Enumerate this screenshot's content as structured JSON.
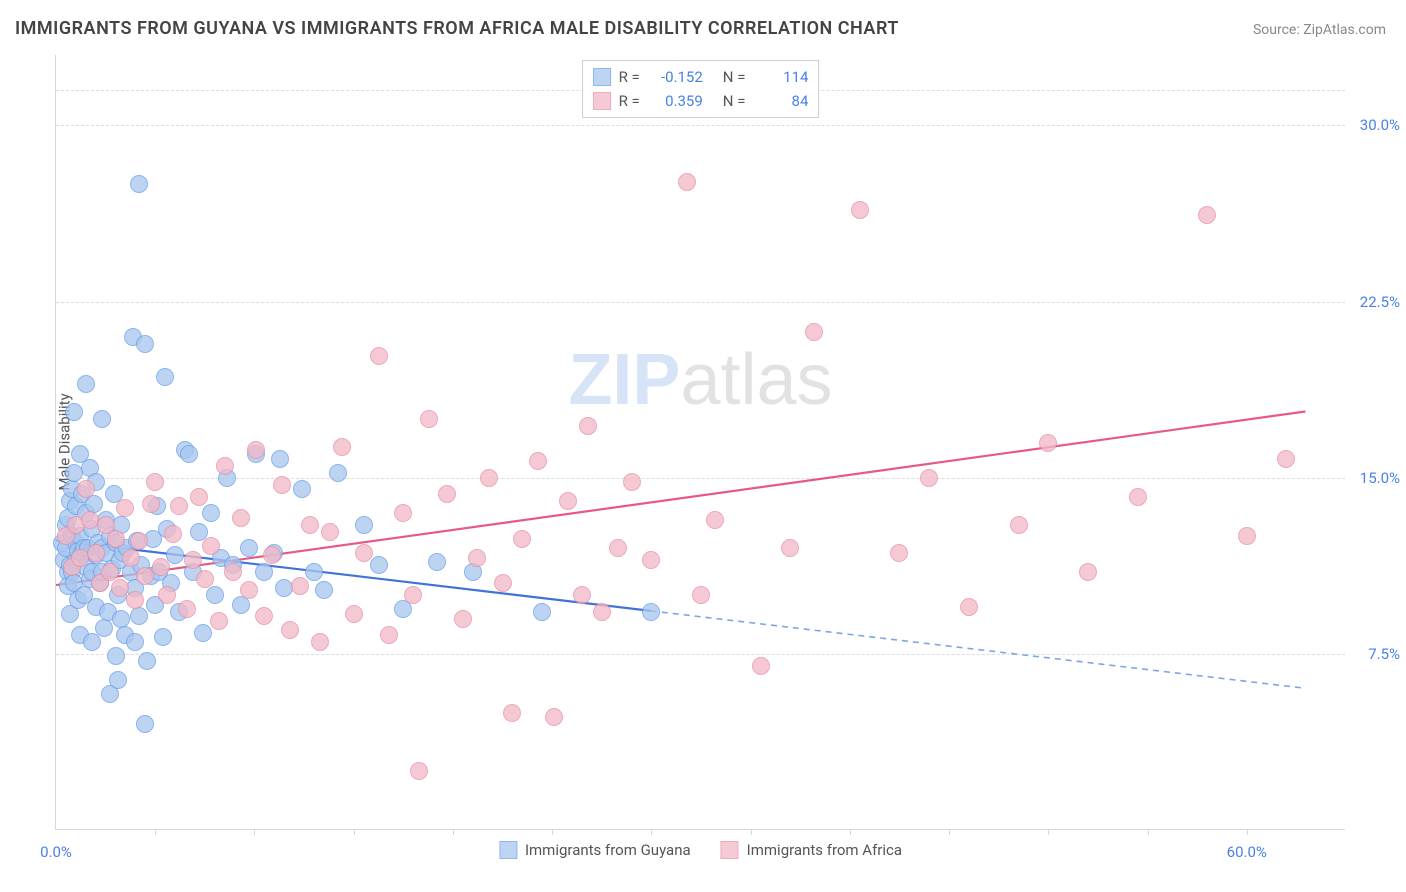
{
  "chart": {
    "type": "scatter",
    "title": "IMMIGRANTS FROM GUYANA VS IMMIGRANTS FROM AFRICA MALE DISABILITY CORRELATION CHART",
    "source": "Source: ZipAtlas.com",
    "y_axis_label": "Male Disability",
    "watermark_zip": "ZIP",
    "watermark_atlas": "atlas",
    "background_color": "#ffffff",
    "grid_color": "#dcdcdc",
    "axis_color": "#d8d8d8",
    "tick_label_color": "#4a80e8",
    "xlim": [
      0,
      65
    ],
    "ylim": [
      0,
      33
    ],
    "x_ticks_at": [
      5,
      10,
      15,
      20,
      25,
      30,
      35,
      40,
      45,
      50,
      55,
      60
    ],
    "x_tick_labels": [
      {
        "x": 0,
        "text": "0.0%"
      },
      {
        "x": 60,
        "text": "60.0%"
      }
    ],
    "y_tick_labels": [
      {
        "y": 7.5,
        "text": "7.5%"
      },
      {
        "y": 15.0,
        "text": "15.0%"
      },
      {
        "y": 22.5,
        "text": "22.5%"
      },
      {
        "y": 30.0,
        "text": "30.0%"
      }
    ],
    "y_gridlines_at": [
      7.5,
      15.0,
      22.5,
      30.0,
      31.5
    ],
    "marker_radius": 9,
    "marker_stroke_width": 1.5,
    "marker_fill_opacity": 0.32,
    "series": [
      {
        "id": "guyana",
        "label": "Immigrants from Guyana",
        "color_stroke": "#6aa0e8",
        "color_fill": "#a8c7ef",
        "R": "-0.152",
        "N": "114",
        "trend": {
          "x1": 0,
          "y1": 12.3,
          "x2": 30,
          "y2": 9.3,
          "color": "#3f73d6",
          "width": 2.2
        },
        "trend_ext": {
          "x1": 30,
          "y1": 9.3,
          "x2": 63,
          "y2": 6.0,
          "color": "#7da5e5",
          "dash": "6,5",
          "width": 1.6
        },
        "points": [
          [
            0.3,
            12.2
          ],
          [
            0.4,
            11.5
          ],
          [
            0.5,
            13.0
          ],
          [
            0.5,
            12.0
          ],
          [
            0.6,
            11.0
          ],
          [
            0.6,
            13.3
          ],
          [
            0.6,
            10.4
          ],
          [
            0.7,
            14.0
          ],
          [
            0.7,
            11.3
          ],
          [
            0.7,
            9.2
          ],
          [
            0.8,
            12.5
          ],
          [
            0.8,
            14.5
          ],
          [
            0.8,
            11.0
          ],
          [
            0.9,
            15.2
          ],
          [
            0.9,
            10.5
          ],
          [
            0.9,
            17.8
          ],
          [
            1.0,
            12.2
          ],
          [
            1.0,
            11.5
          ],
          [
            1.0,
            13.8
          ],
          [
            1.1,
            11.9
          ],
          [
            1.1,
            9.8
          ],
          [
            1.2,
            16.0
          ],
          [
            1.2,
            8.3
          ],
          [
            1.2,
            12.5
          ],
          [
            1.3,
            11.8
          ],
          [
            1.3,
            14.3
          ],
          [
            1.4,
            12.0
          ],
          [
            1.4,
            10.0
          ],
          [
            1.5,
            13.5
          ],
          [
            1.5,
            11.2
          ],
          [
            1.5,
            19.0
          ],
          [
            1.6,
            12.0
          ],
          [
            1.7,
            15.4
          ],
          [
            1.7,
            10.7
          ],
          [
            1.8,
            12.8
          ],
          [
            1.8,
            8.0
          ],
          [
            1.8,
            11.0
          ],
          [
            1.9,
            13.9
          ],
          [
            2.0,
            14.8
          ],
          [
            2.0,
            9.5
          ],
          [
            2.0,
            11.7
          ],
          [
            2.1,
            12.2
          ],
          [
            2.2,
            10.5
          ],
          [
            2.3,
            17.5
          ],
          [
            2.3,
            12.0
          ],
          [
            2.3,
            11.0
          ],
          [
            2.4,
            8.6
          ],
          [
            2.5,
            13.2
          ],
          [
            2.5,
            11.8
          ],
          [
            2.6,
            9.3
          ],
          [
            2.7,
            5.8
          ],
          [
            2.7,
            12.5
          ],
          [
            2.8,
            11.1
          ],
          [
            2.9,
            14.3
          ],
          [
            3.0,
            12.2
          ],
          [
            3.0,
            7.4
          ],
          [
            3.1,
            10.0
          ],
          [
            3.1,
            6.4
          ],
          [
            3.2,
            11.5
          ],
          [
            3.3,
            13.0
          ],
          [
            3.3,
            9.0
          ],
          [
            3.4,
            11.8
          ],
          [
            3.5,
            8.3
          ],
          [
            3.6,
            12.0
          ],
          [
            3.8,
            11.0
          ],
          [
            3.9,
            21.0
          ],
          [
            4.0,
            10.3
          ],
          [
            4.0,
            8.0
          ],
          [
            4.1,
            12.3
          ],
          [
            4.2,
            9.1
          ],
          [
            4.3,
            11.3
          ],
          [
            4.5,
            4.5
          ],
          [
            4.5,
            20.7
          ],
          [
            4.6,
            7.2
          ],
          [
            4.8,
            10.8
          ],
          [
            4.9,
            12.4
          ],
          [
            5.0,
            9.6
          ],
          [
            5.1,
            13.8
          ],
          [
            5.2,
            11.0
          ],
          [
            5.4,
            8.2
          ],
          [
            5.5,
            19.3
          ],
          [
            5.6,
            12.8
          ],
          [
            5.8,
            10.5
          ],
          [
            6.0,
            11.7
          ],
          [
            6.2,
            9.3
          ],
          [
            6.5,
            16.2
          ],
          [
            6.7,
            16.0
          ],
          [
            6.9,
            11.0
          ],
          [
            7.2,
            12.7
          ],
          [
            7.4,
            8.4
          ],
          [
            7.8,
            13.5
          ],
          [
            8.0,
            10.0
          ],
          [
            8.3,
            11.6
          ],
          [
            8.6,
            15.0
          ],
          [
            8.9,
            11.3
          ],
          [
            9.3,
            9.6
          ],
          [
            9.7,
            12.0
          ],
          [
            10.1,
            16.0
          ],
          [
            10.5,
            11.0
          ],
          [
            11.0,
            11.8
          ],
          [
            11.3,
            15.8
          ],
          [
            11.5,
            10.3
          ],
          [
            12.4,
            14.5
          ],
          [
            13.0,
            11.0
          ],
          [
            13.5,
            10.2
          ],
          [
            14.2,
            15.2
          ],
          [
            15.5,
            13.0
          ],
          [
            16.3,
            11.3
          ],
          [
            17.5,
            9.4
          ],
          [
            19.2,
            11.4
          ],
          [
            21.0,
            11.0
          ],
          [
            24.5,
            9.3
          ],
          [
            4.2,
            27.5
          ],
          [
            30.0,
            9.3
          ]
        ]
      },
      {
        "id": "africa",
        "label": "Immigrants from Africa",
        "color_stroke": "#e890a8",
        "color_fill": "#f2b9c8",
        "R": "0.359",
        "N": "84",
        "trend": {
          "x1": 0,
          "y1": 10.4,
          "x2": 63,
          "y2": 17.8,
          "color": "#e55a84",
          "width": 2.2
        },
        "points": [
          [
            0.5,
            12.5
          ],
          [
            0.8,
            11.2
          ],
          [
            1.0,
            13.0
          ],
          [
            1.2,
            11.6
          ],
          [
            1.5,
            14.5
          ],
          [
            1.7,
            13.2
          ],
          [
            2.0,
            11.8
          ],
          [
            2.2,
            10.5
          ],
          [
            2.5,
            13.0
          ],
          [
            2.7,
            11.0
          ],
          [
            3.0,
            12.4
          ],
          [
            3.2,
            10.3
          ],
          [
            3.5,
            13.7
          ],
          [
            3.8,
            11.6
          ],
          [
            4.0,
            9.8
          ],
          [
            4.2,
            12.3
          ],
          [
            4.5,
            10.8
          ],
          [
            4.8,
            13.9
          ],
          [
            5.0,
            14.8
          ],
          [
            5.3,
            11.2
          ],
          [
            5.6,
            10.0
          ],
          [
            5.9,
            12.6
          ],
          [
            6.2,
            13.8
          ],
          [
            6.6,
            9.4
          ],
          [
            6.9,
            11.5
          ],
          [
            7.2,
            14.2
          ],
          [
            7.5,
            10.7
          ],
          [
            7.8,
            12.1
          ],
          [
            8.2,
            8.9
          ],
          [
            8.5,
            15.5
          ],
          [
            8.9,
            11.0
          ],
          [
            9.3,
            13.3
          ],
          [
            9.7,
            10.2
          ],
          [
            10.1,
            16.2
          ],
          [
            10.5,
            9.1
          ],
          [
            10.9,
            11.7
          ],
          [
            11.4,
            14.7
          ],
          [
            11.8,
            8.5
          ],
          [
            12.3,
            10.4
          ],
          [
            12.8,
            13.0
          ],
          [
            13.3,
            8.0
          ],
          [
            13.8,
            12.7
          ],
          [
            14.4,
            16.3
          ],
          [
            15.0,
            9.2
          ],
          [
            15.5,
            11.8
          ],
          [
            16.3,
            20.2
          ],
          [
            16.8,
            8.3
          ],
          [
            17.5,
            13.5
          ],
          [
            18.0,
            10.0
          ],
          [
            18.3,
            2.5
          ],
          [
            18.8,
            17.5
          ],
          [
            19.7,
            14.3
          ],
          [
            20.5,
            9.0
          ],
          [
            21.2,
            11.6
          ],
          [
            21.8,
            15.0
          ],
          [
            22.5,
            10.5
          ],
          [
            23.0,
            5.0
          ],
          [
            23.5,
            12.4
          ],
          [
            24.3,
            15.7
          ],
          [
            25.1,
            4.8
          ],
          [
            25.8,
            14.0
          ],
          [
            26.5,
            10.0
          ],
          [
            26.8,
            17.2
          ],
          [
            27.5,
            9.3
          ],
          [
            28.3,
            12.0
          ],
          [
            29.0,
            14.8
          ],
          [
            30.0,
            11.5
          ],
          [
            31.8,
            27.6
          ],
          [
            32.5,
            10.0
          ],
          [
            33.2,
            13.2
          ],
          [
            35.5,
            7.0
          ],
          [
            37.0,
            12.0
          ],
          [
            38.2,
            21.2
          ],
          [
            40.5,
            26.4
          ],
          [
            42.5,
            11.8
          ],
          [
            44.0,
            15.0
          ],
          [
            46.0,
            9.5
          ],
          [
            48.5,
            13.0
          ],
          [
            50.0,
            16.5
          ],
          [
            52.0,
            11.0
          ],
          [
            54.5,
            14.2
          ],
          [
            58.0,
            26.2
          ],
          [
            60.0,
            12.5
          ],
          [
            62.0,
            15.8
          ]
        ]
      }
    ],
    "legend_top": {
      "R_label": "R =",
      "N_label": "N ="
    },
    "legend_bottom": [
      {
        "series": "guyana"
      },
      {
        "series": "africa"
      }
    ]
  }
}
